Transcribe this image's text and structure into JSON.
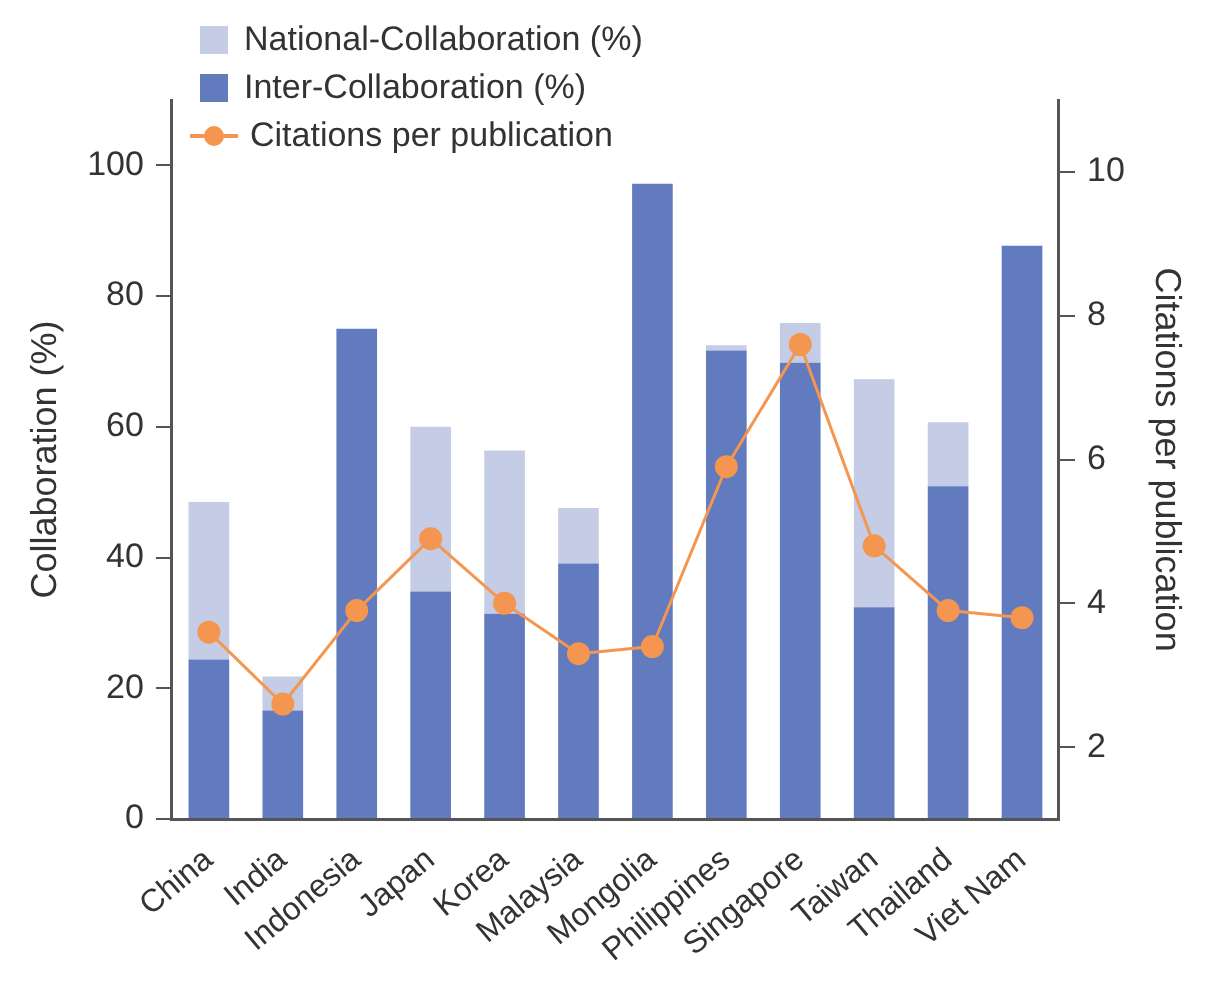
{
  "chart_data": {
    "type": "bar",
    "stacked": true,
    "ylabel": "Collaboration (%)",
    "y2label": "Citations per publication",
    "categories": [
      "China",
      "India",
      "Indonesia",
      "Japan",
      "Korea",
      "Malaysia",
      "Mongolia",
      "Philippines",
      "Singapore",
      "Taiwan",
      "Thailand",
      "Viet Nam"
    ],
    "series": [
      {
        "name": "Inter-Collaboration (%)",
        "color": "#627bbf",
        "values": [
          24.4,
          16.6,
          75.0,
          34.8,
          31.4,
          39.1,
          97.2,
          71.7,
          69.8,
          32.4,
          50.9,
          87.7
        ]
      },
      {
        "name": "National-Collaboration (%)",
        "color": "#c5cce6",
        "values": [
          24.1,
          5.2,
          0,
          25.2,
          25.0,
          8.5,
          0,
          0.8,
          6.1,
          34.9,
          9.8,
          0
        ]
      },
      {
        "name": "Citations per publication",
        "type": "line",
        "axis": "y2",
        "color": "#f4964f",
        "marker": "circle",
        "values": [
          3.6,
          2.6,
          3.9,
          4.9,
          4.0,
          3.3,
          3.4,
          5.9,
          7.6,
          4.8,
          3.9,
          3.8
        ]
      }
    ],
    "ylim": [
      0,
      110
    ],
    "yticks": [
      0,
      20,
      40,
      60,
      80,
      100
    ],
    "y2lim": [
      1,
      11
    ],
    "y2ticks": [
      2,
      4,
      6,
      8,
      10
    ],
    "grid": false,
    "legend": "top left"
  }
}
